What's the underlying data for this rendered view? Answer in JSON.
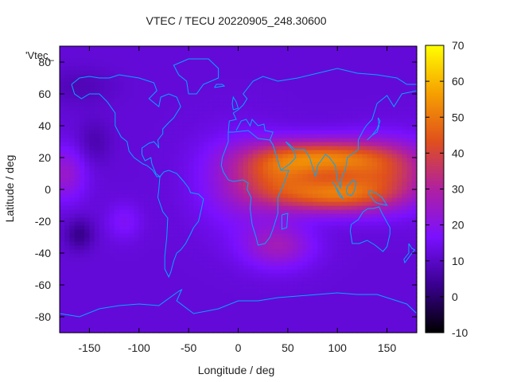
{
  "chart_data": {
    "type": "heatmap",
    "title": "VTEC / TECU 20220905_248.30600",
    "corner_label": "'Vtec_",
    "xlabel": "Longitude / deg",
    "ylabel": "Latitude / deg",
    "xlim": [
      -180,
      180
    ],
    "ylim": [
      -90,
      90
    ],
    "x_ticks": [
      -150,
      -100,
      -50,
      0,
      50,
      100,
      150
    ],
    "y_ticks": [
      -80,
      -60,
      -40,
      -20,
      0,
      20,
      40,
      60,
      80
    ],
    "colorbar": {
      "range": [
        -10,
        70
      ],
      "ticks": [
        -10,
        0,
        10,
        20,
        30,
        40,
        50,
        60,
        70
      ],
      "palette": [
        "#000000",
        "#3a0090",
        "#7a10ff",
        "#b020a0",
        "#e0501c",
        "#f6a000",
        "#ffff00"
      ]
    },
    "field_sources": [
      {
        "lon": 85,
        "lat": 20,
        "sx": 45,
        "sy": 8,
        "amp": 34
      },
      {
        "lon": 95,
        "lat": -3,
        "sx": 40,
        "sy": 8,
        "amp": 32
      },
      {
        "lon": 40,
        "lat": 8,
        "sx": 28,
        "sy": 12,
        "amp": 20
      },
      {
        "lon": 150,
        "lat": 10,
        "sx": 35,
        "sy": 14,
        "amp": 22
      },
      {
        "lon": 40,
        "lat": -35,
        "sx": 25,
        "sy": 10,
        "amp": 14
      },
      {
        "lon": 0,
        "lat": 5,
        "sx": 30,
        "sy": 20,
        "amp": 10
      },
      {
        "lon": -175,
        "lat": 10,
        "sx": 15,
        "sy": 12,
        "amp": 12
      },
      {
        "lon": -115,
        "lat": -20,
        "sx": 12,
        "sy": 8,
        "amp": 6
      },
      {
        "lon": -160,
        "lat": -28,
        "sx": 10,
        "sy": 7,
        "amp": -9
      },
      {
        "lon": -145,
        "lat": 30,
        "sx": 12,
        "sy": 10,
        "amp": -5
      },
      {
        "lon": -160,
        "lat": 65,
        "sx": 25,
        "sy": 8,
        "amp": -4
      }
    ],
    "field_base": 12,
    "coastlines": [
      [
        [
          -168,
          66
        ],
        [
          -160,
          70
        ],
        [
          -150,
          71
        ],
        [
          -140,
          70
        ],
        [
          -130,
          70
        ],
        [
          -120,
          72
        ],
        [
          -100,
          70
        ],
        [
          -85,
          67
        ],
        [
          -82,
          62
        ],
        [
          -90,
          57
        ],
        [
          -80,
          52
        ],
        [
          -78,
          58
        ],
        [
          -70,
          60
        ],
        [
          -62,
          58
        ],
        [
          -58,
          52
        ],
        [
          -65,
          45
        ],
        [
          -70,
          42
        ],
        [
          -76,
          38
        ],
        [
          -76,
          35
        ],
        [
          -81,
          31
        ],
        [
          -80,
          26
        ],
        [
          -82,
          28
        ],
        [
          -85,
          30
        ],
        [
          -90,
          29
        ],
        [
          -97,
          26
        ],
        [
          -97,
          22
        ],
        [
          -94,
          18
        ],
        [
          -88,
          20
        ],
        [
          -87,
          16
        ],
        [
          -83,
          10
        ],
        [
          -79,
          8
        ],
        [
          -82,
          8
        ],
        [
          -86,
          12
        ],
        [
          -92,
          15
        ],
        [
          -96,
          16
        ],
        [
          -105,
          20
        ],
        [
          -110,
          24
        ],
        [
          -112,
          30
        ],
        [
          -118,
          33
        ],
        [
          -124,
          40
        ],
        [
          -124,
          48
        ],
        [
          -132,
          55
        ],
        [
          -140,
          60
        ],
        [
          -150,
          60
        ],
        [
          -158,
          57
        ],
        [
          -165,
          60
        ],
        [
          -168,
          66
        ]
      ],
      [
        [
          -79,
          8
        ],
        [
          -75,
          11
        ],
        [
          -70,
          12
        ],
        [
          -62,
          10
        ],
        [
          -55,
          5
        ],
        [
          -50,
          1
        ],
        [
          -48,
          -2
        ],
        [
          -40,
          -3
        ],
        [
          -35,
          -6
        ],
        [
          -37,
          -12
        ],
        [
          -40,
          -20
        ],
        [
          -45,
          -24
        ],
        [
          -48,
          -28
        ],
        [
          -53,
          -34
        ],
        [
          -58,
          -38
        ],
        [
          -62,
          -40
        ],
        [
          -65,
          -45
        ],
        [
          -68,
          -52
        ],
        [
          -70,
          -55
        ],
        [
          -74,
          -50
        ],
        [
          -74,
          -42
        ],
        [
          -72,
          -30
        ],
        [
          -71,
          -18
        ],
        [
          -76,
          -14
        ],
        [
          -81,
          -5
        ],
        [
          -80,
          0
        ],
        [
          -79,
          8
        ]
      ],
      [
        [
          -50,
          60
        ],
        [
          -42,
          60
        ],
        [
          -35,
          66
        ],
        [
          -20,
          70
        ],
        [
          -20,
          76
        ],
        [
          -30,
          82
        ],
        [
          -50,
          82
        ],
        [
          -65,
          78
        ],
        [
          -60,
          72
        ],
        [
          -52,
          68
        ],
        [
          -50,
          60
        ]
      ],
      [
        [
          -10,
          36
        ],
        [
          -5,
          36
        ],
        [
          10,
          37
        ],
        [
          20,
          32
        ],
        [
          32,
          31
        ],
        [
          35,
          28
        ],
        [
          43,
          12
        ],
        [
          51,
          12
        ],
        [
          45,
          2
        ],
        [
          40,
          -5
        ],
        [
          40,
          -15
        ],
        [
          35,
          -25
        ],
        [
          32,
          -30
        ],
        [
          27,
          -34
        ],
        [
          20,
          -35
        ],
        [
          18,
          -30
        ],
        [
          14,
          -22
        ],
        [
          12,
          -12
        ],
        [
          13,
          -5
        ],
        [
          9,
          0
        ],
        [
          10,
          4
        ],
        [
          5,
          6
        ],
        [
          -5,
          5
        ],
        [
          -10,
          6
        ],
        [
          -15,
          11
        ],
        [
          -17,
          15
        ],
        [
          -16,
          20
        ],
        [
          -10,
          30
        ],
        [
          -10,
          36
        ]
      ],
      [
        [
          -10,
          36
        ],
        [
          -9,
          43
        ],
        [
          -2,
          44
        ],
        [
          -5,
          48
        ],
        [
          0,
          50
        ],
        [
          5,
          53
        ],
        [
          9,
          57
        ],
        [
          5,
          60
        ],
        [
          10,
          64
        ],
        [
          15,
          68
        ],
        [
          25,
          71
        ],
        [
          40,
          68
        ],
        [
          60,
          70
        ],
        [
          80,
          73
        ],
        [
          100,
          76
        ],
        [
          120,
          73
        ],
        [
          140,
          72
        ],
        [
          160,
          70
        ],
        [
          170,
          66
        ],
        [
          180,
          66
        ]
      ],
      [
        [
          180,
          62
        ],
        [
          165,
          60
        ],
        [
          157,
          52
        ],
        [
          150,
          59
        ],
        [
          140,
          54
        ],
        [
          135,
          44
        ],
        [
          129,
          40
        ],
        [
          126,
          37
        ],
        [
          121,
          31
        ],
        [
          121,
          25
        ],
        [
          110,
          20
        ],
        [
          108,
          12
        ],
        [
          105,
          9
        ],
        [
          103,
          1
        ],
        [
          100,
          6
        ],
        [
          98,
          15
        ],
        [
          92,
          20
        ],
        [
          88,
          22
        ],
        [
          80,
          15
        ],
        [
          78,
          8
        ],
        [
          72,
          20
        ],
        [
          67,
          25
        ],
        [
          57,
          25
        ],
        [
          52,
          28
        ],
        [
          48,
          30
        ],
        [
          56,
          24
        ],
        [
          58,
          20
        ],
        [
          52,
          16
        ],
        [
          43,
          12
        ],
        [
          35,
          28
        ],
        [
          32,
          31
        ],
        [
          35,
          36
        ],
        [
          27,
          37
        ],
        [
          26,
          41
        ],
        [
          20,
          40
        ],
        [
          14,
          44
        ],
        [
          12,
          40
        ],
        [
          8,
          44
        ],
        [
          3,
          43
        ],
        [
          -2,
          37
        ]
      ],
      [
        [
          114,
          -22
        ],
        [
          113,
          -26
        ],
        [
          115,
          -34
        ],
        [
          122,
          -34
        ],
        [
          130,
          -32
        ],
        [
          138,
          -35
        ],
        [
          146,
          -39
        ],
        [
          150,
          -36
        ],
        [
          153,
          -28
        ],
        [
          153,
          -24
        ],
        [
          145,
          -15
        ],
        [
          142,
          -11
        ],
        [
          136,
          -12
        ],
        [
          131,
          -12
        ],
        [
          126,
          -14
        ],
        [
          121,
          -19
        ],
        [
          114,
          -22
        ]
      ],
      [
        [
          172,
          -34
        ],
        [
          175,
          -37
        ],
        [
          178,
          -38
        ],
        [
          174,
          -41
        ],
        [
          168,
          -46
        ],
        [
          167,
          -44
        ],
        [
          172,
          -40
        ],
        [
          172,
          -34
        ]
      ],
      [
        [
          130,
          31
        ],
        [
          135,
          34
        ],
        [
          140,
          36
        ],
        [
          142,
          40
        ],
        [
          141,
          45
        ],
        [
          143,
          43
        ],
        [
          140,
          38
        ],
        [
          135,
          34
        ],
        [
          130,
          31
        ]
      ],
      [
        [
          95,
          5
        ],
        [
          100,
          0
        ],
        [
          105,
          -5
        ],
        [
          106,
          -6
        ],
        [
          102,
          -4
        ],
        [
          98,
          2
        ],
        [
          95,
          5
        ]
      ],
      [
        [
          109,
          -1
        ],
        [
          110,
          2
        ],
        [
          116,
          6
        ],
        [
          119,
          4
        ],
        [
          117,
          -1
        ],
        [
          114,
          -4
        ],
        [
          110,
          -3
        ],
        [
          109,
          -1
        ]
      ],
      [
        [
          132,
          -1
        ],
        [
          138,
          -2
        ],
        [
          145,
          -5
        ],
        [
          150,
          -10
        ],
        [
          142,
          -9
        ],
        [
          138,
          -8
        ],
        [
          132,
          -3
        ],
        [
          132,
          -1
        ]
      ],
      [
        [
          -5,
          50
        ],
        [
          0,
          51
        ],
        [
          -2,
          55
        ],
        [
          -5,
          58
        ],
        [
          -6,
          54
        ],
        [
          -5,
          50
        ]
      ],
      [
        [
          -24,
          64
        ],
        [
          -14,
          65
        ],
        [
          -16,
          66
        ],
        [
          -22,
          66
        ],
        [
          -24,
          64
        ]
      ],
      [
        [
          44,
          -16
        ],
        [
          50,
          -15
        ],
        [
          49,
          -24
        ],
        [
          44,
          -25
        ],
        [
          44,
          -16
        ]
      ],
      [
        [
          -180,
          -78
        ],
        [
          -160,
          -80
        ],
        [
          -140,
          -75
        ],
        [
          -120,
          -73
        ],
        [
          -100,
          -72
        ],
        [
          -80,
          -73
        ],
        [
          -60,
          -64
        ],
        [
          -57,
          -63
        ],
        [
          -62,
          -70
        ],
        [
          -45,
          -78
        ],
        [
          -20,
          -75
        ],
        [
          0,
          -70
        ],
        [
          20,
          -70
        ],
        [
          40,
          -68
        ],
        [
          60,
          -67
        ],
        [
          80,
          -66
        ],
        [
          100,
          -65
        ],
        [
          120,
          -66
        ],
        [
          140,
          -66
        ],
        [
          160,
          -70
        ],
        [
          170,
          -72
        ],
        [
          180,
          -78
        ]
      ]
    ]
  }
}
